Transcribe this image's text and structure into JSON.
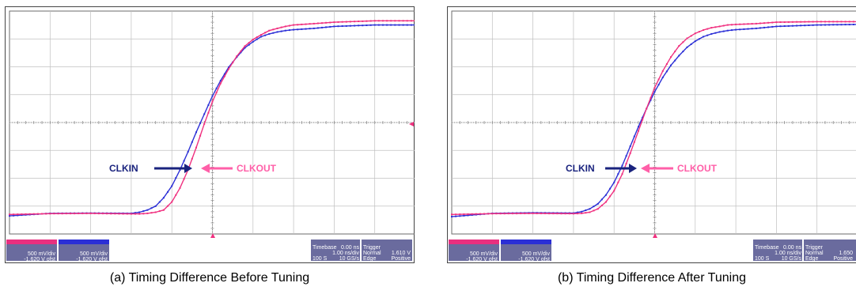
{
  "colors": {
    "clkin": "#2b2fd6",
    "clkout": "#f0307f",
    "clkin_label": "#1a237e",
    "clkout_label": "#ff5fa8",
    "grid": "#c0c0c0",
    "frame": "#6b6b6b"
  },
  "chart_data": [
    {
      "type": "line",
      "caption": "(a)  Timing Difference Before Tuning",
      "xlim": [
        0,
        10
      ],
      "ylim": [
        0,
        8
      ],
      "grid": true,
      "annotations": {
        "clkin": "CLKIN",
        "clkout": "CLKOUT"
      },
      "series": [
        {
          "name": "CLKIN",
          "color": "#2b2fd6",
          "x": [
            0,
            1,
            2,
            3,
            3.2,
            3.4,
            3.6,
            3.8,
            4.0,
            4.2,
            4.4,
            4.6,
            4.8,
            5.0,
            5.2,
            5.4,
            5.6,
            5.8,
            6.0,
            6.2,
            6.4,
            6.6,
            6.8,
            7.0,
            7.5,
            8.0,
            9.0,
            10.0
          ],
          "y": [
            0.65,
            0.74,
            0.75,
            0.74,
            0.78,
            0.86,
            1.0,
            1.3,
            1.72,
            2.3,
            2.95,
            3.65,
            4.3,
            4.95,
            5.5,
            5.98,
            6.35,
            6.68,
            6.9,
            7.08,
            7.18,
            7.25,
            7.3,
            7.33,
            7.38,
            7.45,
            7.5,
            7.5
          ]
        },
        {
          "name": "CLKOUT",
          "color": "#f0307f",
          "x": [
            0,
            1,
            2,
            3,
            3.2,
            3.4,
            3.6,
            3.8,
            4.0,
            4.2,
            4.4,
            4.6,
            4.8,
            5.0,
            5.2,
            5.4,
            5.6,
            5.8,
            6.0,
            6.2,
            6.4,
            6.6,
            6.8,
            7.0,
            7.5,
            8.0,
            9.0,
            10.0
          ],
          "y": [
            0.7,
            0.73,
            0.74,
            0.72,
            0.72,
            0.74,
            0.78,
            0.86,
            1.15,
            1.65,
            2.3,
            3.1,
            3.95,
            4.75,
            5.4,
            5.92,
            6.38,
            6.74,
            6.98,
            7.15,
            7.3,
            7.38,
            7.45,
            7.5,
            7.55,
            7.6,
            7.65,
            7.65
          ]
        }
      ],
      "readouts": {
        "ch3_vdiv": "500 mV/div",
        "ch3_ofst": "-1.620 V ofst",
        "ch4_vdiv": "500 mV/div",
        "ch4_ofst": "-1.620 V ofst",
        "timebase_label": "Timebase",
        "timebase_val": "0.00 ns",
        "tdiv": "1.00 ns/div",
        "samples": "100 S",
        "rate": "10 GS/s",
        "trigger_label": "Trigger",
        "trig_mode": "Normal",
        "trig_level": "1.610 V",
        "trig_type": "Edge",
        "trig_slope": "Positive"
      }
    },
    {
      "type": "line",
      "caption": "(b)  Timing Difference After Tuning",
      "xlim": [
        0,
        10
      ],
      "ylim": [
        0,
        8
      ],
      "grid": true,
      "annotations": {
        "clkin": "CLKIN",
        "clkout": "CLKOUT"
      },
      "series": [
        {
          "name": "CLKIN",
          "color": "#2b2fd6",
          "x": [
            0,
            1,
            2,
            3,
            3.2,
            3.4,
            3.6,
            3.8,
            4.0,
            4.2,
            4.4,
            4.6,
            4.8,
            5.0,
            5.2,
            5.4,
            5.6,
            5.8,
            6.0,
            6.2,
            6.4,
            6.6,
            6.8,
            7.0,
            7.5,
            8.0,
            9.0,
            10.0
          ],
          "y": [
            0.62,
            0.74,
            0.76,
            0.75,
            0.8,
            0.9,
            1.08,
            1.4,
            1.85,
            2.45,
            3.15,
            3.85,
            4.5,
            5.1,
            5.62,
            6.05,
            6.4,
            6.7,
            6.92,
            7.08,
            7.18,
            7.25,
            7.3,
            7.33,
            7.38,
            7.45,
            7.5,
            7.52
          ]
        },
        {
          "name": "CLKOUT",
          "color": "#f0307f",
          "x": [
            0,
            1,
            2,
            3,
            3.2,
            3.4,
            3.6,
            3.8,
            4.0,
            4.2,
            4.4,
            4.6,
            4.8,
            5.0,
            5.2,
            5.4,
            5.6,
            5.8,
            6.0,
            6.2,
            6.4,
            6.6,
            6.8,
            7.0,
            7.5,
            8.0,
            9.0,
            10.0
          ],
          "y": [
            0.7,
            0.73,
            0.74,
            0.73,
            0.74,
            0.78,
            0.9,
            1.15,
            1.55,
            2.15,
            2.9,
            3.7,
            4.5,
            5.25,
            5.85,
            6.35,
            6.75,
            7.02,
            7.2,
            7.32,
            7.4,
            7.45,
            7.5,
            7.52,
            7.55,
            7.6,
            7.62,
            7.62
          ]
        }
      ],
      "readouts": {
        "ch3_vdiv": "500 mV/div",
        "ch3_ofst": "-1.620 V ofst",
        "ch4_vdiv": "500 mV/div",
        "ch4_ofst": "-1.620 V ofst",
        "timebase_label": "Timebase",
        "timebase_val": "0.00 ns",
        "tdiv": "1.00 ns/div",
        "samples": "100 S",
        "rate": "10 GS/s",
        "trigger_label": "Trigger",
        "trig_mode": "Normal",
        "trig_level": "1.650",
        "trig_type": "Edge",
        "trig_slope": "Positive"
      }
    }
  ]
}
